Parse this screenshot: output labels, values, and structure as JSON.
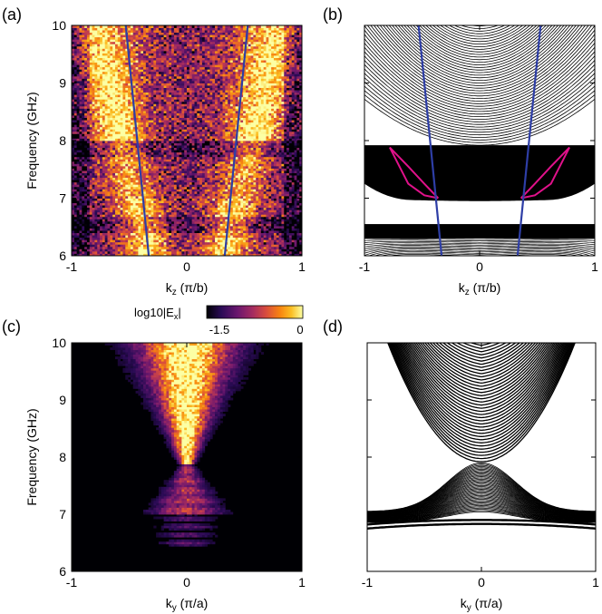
{
  "colors": {
    "theory_line": "#2e3ea6",
    "edge_state": "#e0118a",
    "band": "#000000",
    "colormap": [
      "#000004",
      "#2a0b55",
      "#6a176e",
      "#a52c60",
      "#d94d3d",
      "#f78311",
      "#fbbe23",
      "#fcffa4"
    ]
  },
  "chart_data": [
    {
      "panel": "(a)",
      "type": "heatmap",
      "xlabel": "k_z (π/b)",
      "ylabel": "Frequency (GHz)",
      "xlim": [
        -1,
        1
      ],
      "ylim": [
        6,
        10
      ],
      "xticks": [
        "-1",
        "0",
        "1"
      ],
      "yticks": [
        "6",
        "7",
        "8",
        "9",
        "10"
      ],
      "overlay_lines": [
        {
          "color_key": "theory_line",
          "x": [
            -0.33,
            -0.53
          ],
          "y": [
            6,
            10
          ]
        },
        {
          "color_key": "theory_line",
          "x": [
            0.33,
            0.53
          ],
          "y": [
            6,
            10
          ]
        }
      ]
    },
    {
      "panel": "(b)",
      "type": "line",
      "xlabel": "k_z (π/b)",
      "ylabel": "",
      "xlim": [
        -1,
        1
      ],
      "ylim": [
        6,
        10
      ],
      "xticks": [
        "-1",
        "0",
        "1"
      ],
      "yticks": [],
      "bulk_bands": {
        "upper": {
          "min_at_center": 7.92,
          "top": 10
        },
        "middle": {
          "top": 7.92,
          "bottom_at_center": 6.95
        },
        "lower": {
          "top": 6.55,
          "bottom": 6.0
        }
      },
      "edge_states": {
        "x": [
          0.36,
          0.48,
          0.62,
          0.78
        ],
        "y_upper": [
          7.0,
          7.25,
          7.55,
          7.88
        ],
        "y_lower": [
          7.0,
          7.05,
          7.25,
          7.88
        ]
      },
      "overlay_lines": [
        {
          "color_key": "theory_line",
          "x": [
            -0.33,
            -0.53
          ],
          "y": [
            6,
            10
          ]
        },
        {
          "color_key": "theory_line",
          "x": [
            0.33,
            0.53
          ],
          "y": [
            6,
            10
          ]
        }
      ]
    },
    {
      "panel": "(c)",
      "type": "heatmap",
      "xlabel": "k_y (π/a)",
      "ylabel": "Frequency (GHz)",
      "xlim": [
        -1,
        1
      ],
      "ylim": [
        6,
        10
      ],
      "xticks": [
        "-1",
        "0",
        "1"
      ],
      "yticks": [
        "6",
        "7",
        "8",
        "9",
        "10"
      ],
      "colorbar": {
        "label": "log10|E_x|",
        "min": "-1.5",
        "max": "0"
      }
    },
    {
      "panel": "(d)",
      "type": "line",
      "xlabel": "k_y (π/a)",
      "ylabel": "",
      "xlim": [
        -1,
        1
      ],
      "ylim": [
        6,
        10
      ],
      "xticks": [
        "-1",
        "0",
        "1"
      ],
      "yticks": [],
      "bands": {
        "crossing_frequency": 7.92,
        "upper_cone_slope": 3.1,
        "lower_band_floor": 6.75
      }
    }
  ]
}
